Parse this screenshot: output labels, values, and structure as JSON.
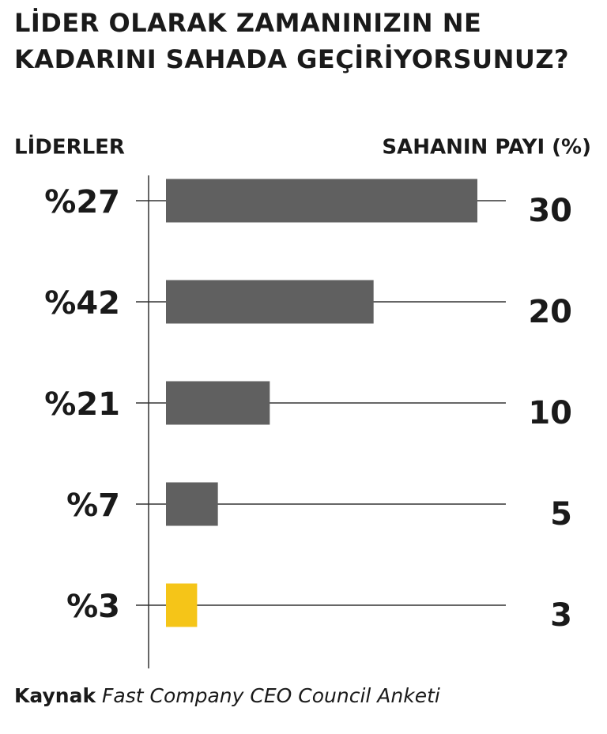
{
  "chart_data": {
    "type": "bar",
    "orientation": "horizontal",
    "title": "LİDER OLARAK ZAMANINIZIN NE KADARINI SAHADA GEÇİRİYORSUNUZ?",
    "y_label": "LİDERLER",
    "x_label": "SAHANIN PAYI (%)",
    "categories": [
      "%27",
      "%42",
      "%21",
      "%7",
      "%3"
    ],
    "values": [
      30,
      20,
      10,
      5,
      3
    ],
    "colors": [
      "#606060",
      "#606060",
      "#606060",
      "#606060",
      "#f5c518"
    ],
    "source_label": "Kaynak",
    "source": "Fast Company CEO Council Anketi"
  }
}
